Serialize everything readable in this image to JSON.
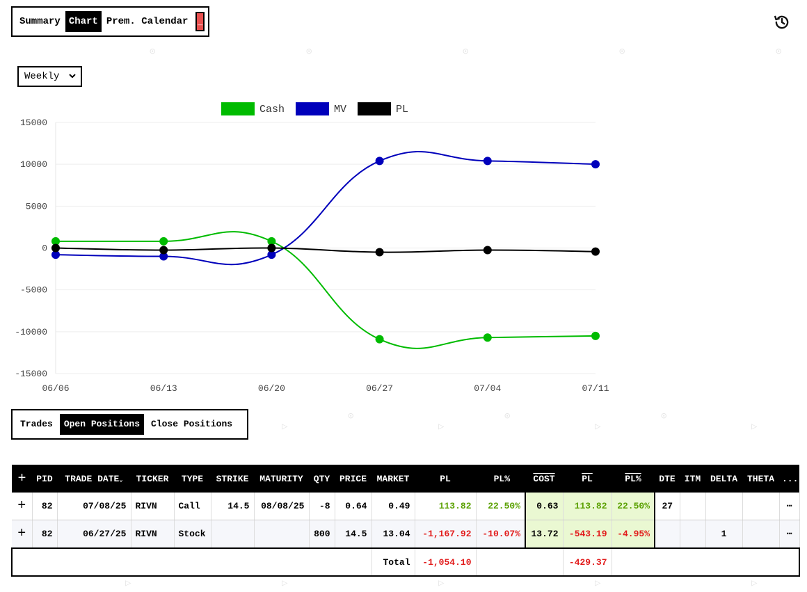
{
  "top_tabs": {
    "items": [
      "Summary",
      "Chart",
      "Prem. Calendar"
    ],
    "active": 1,
    "minimize_label": "_"
  },
  "period_select": {
    "value": "Weekly"
  },
  "chart_data": {
    "type": "line",
    "title": "",
    "xlabel": "",
    "ylabel": "",
    "x": [
      "06/06",
      "06/13",
      "06/20",
      "06/27",
      "07/04",
      "07/11"
    ],
    "ylim": [
      -15000,
      15000
    ],
    "yticks": [
      15000,
      10000,
      5000,
      0,
      -5000,
      -10000,
      -15000
    ],
    "grid": true,
    "legend_position": "top",
    "series": [
      {
        "name": "Cash",
        "color": "#00bb00",
        "values": [
          800,
          800,
          800,
          -10900,
          -10700,
          -10500
        ]
      },
      {
        "name": "MV",
        "color": "#0000bb",
        "values": [
          -800,
          -1000,
          -800,
          10400,
          10400,
          10000
        ]
      },
      {
        "name": "PL",
        "color": "#000000",
        "values": [
          0,
          -250,
          0,
          -500,
          -250,
          -430
        ]
      }
    ]
  },
  "bottom_tabs": {
    "items": [
      "Trades",
      "Open Positions",
      "Close Positions"
    ],
    "active": 1
  },
  "table": {
    "headers": [
      "PID",
      "TRADE DATE",
      "TICKER",
      "TYPE",
      "STRIKE",
      "MATURITY",
      "QTY",
      "PRICE",
      "MARKET",
      "PL",
      "PL%",
      "COST",
      "PL",
      "PL%",
      "DTE",
      "ITM",
      "DELTA",
      "THETA",
      "..."
    ],
    "rows": [
      {
        "pid": "82",
        "trade_date": "07/08/25",
        "ticker": "RIVN",
        "type": "Call",
        "strike": "14.5",
        "maturity": "08/08/25",
        "qty": "-8",
        "price": "0.64",
        "market": "0.49",
        "pl": "113.82",
        "pl_pct": "22.50%",
        "cost": "0.63",
        "adj_pl": "113.82",
        "adj_pl_pct": "22.50%",
        "dte": "27",
        "itm": "",
        "delta": "",
        "theta": ""
      },
      {
        "pid": "82",
        "trade_date": "06/27/25",
        "ticker": "RIVN",
        "type": "Stock",
        "strike": "",
        "maturity": "",
        "qty": "800",
        "price": "14.5",
        "market": "13.04",
        "pl": "-1,167.92",
        "pl_pct": "-10.07%",
        "cost": "13.72",
        "adj_pl": "-543.19",
        "adj_pl_pct": "-4.95%",
        "dte": "",
        "itm": "",
        "delta": "1",
        "theta": ""
      }
    ],
    "total": {
      "label": "Total",
      "pl": "-1,054.10",
      "adj_pl": "-429.37"
    }
  },
  "colors": {
    "positive": "#5aa000",
    "negative": "#e21b1b",
    "highlight": "#eaf8d2",
    "minimize": "#e8504f"
  },
  "icons": {
    "history": "history-clock-icon",
    "expand": "plus-icon",
    "more": "dots-icon",
    "dropdown": "chevron-down-icon"
  }
}
